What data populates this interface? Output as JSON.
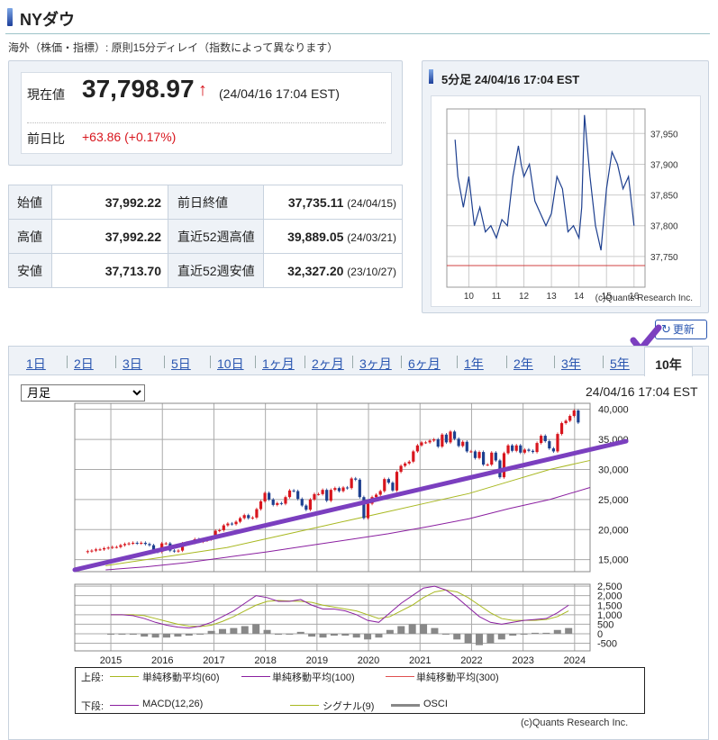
{
  "header": {
    "title": "NYダウ"
  },
  "notice": "海外（株価・指標）: 原則15分ディレイ（指数によって異なります）",
  "quote": {
    "current_label": "現在値",
    "price": "37,798.97",
    "arrow": "↑",
    "time": "(24/04/16 17:04 EST)",
    "change_label": "前日比",
    "change": "+63.86",
    "change_pct": "(+0.17%)"
  },
  "stats": {
    "open_label": "始値",
    "open": "37,992.22",
    "high_label": "高値",
    "high": "37,992.22",
    "low_label": "安値",
    "low": "37,713.70",
    "prev_close_label": "前日終値",
    "prev_close": "37,735.11",
    "prev_close_date": "(24/04/15)",
    "high52_label": "直近52週高値",
    "high52": "39,889.05",
    "high52_date": "(24/03/21)",
    "low52_label": "直近52週安値",
    "low52": "32,327.20",
    "low52_date": "(23/10/27)"
  },
  "mini": {
    "title": "5分足 24/04/16 17:04 EST",
    "copyright": "(c)Quants Research Inc."
  },
  "refresh_label": "更新",
  "tabs": [
    "1日",
    "2日",
    "3日",
    "5日",
    "10日",
    "1ヶ月",
    "2ヶ月",
    "3ヶ月",
    "6ヶ月",
    "1年",
    "2年",
    "3年",
    "5年",
    "10年"
  ],
  "active_tab": "10年",
  "period_select": {
    "value": "月足",
    "options": [
      "月足"
    ]
  },
  "chart_time": "24/04/16 17:04 EST",
  "legend": {
    "upper_label": "上段:",
    "ma60": "単純移動平均(60)",
    "ma100": "単純移動平均(100)",
    "ma300": "単純移動平均(300)",
    "lower_label": "下段:",
    "macd": "MACD(12,26)",
    "signal": "シグナル(9)",
    "osci": "OSCI"
  },
  "copyright": "(c)Quants Research Inc.",
  "colors": {
    "up": "#d8161e",
    "down": "#1d3f8f",
    "ma60": "#a8b820",
    "ma100": "#8a1fa0",
    "ma300": "#e05050",
    "trend": "#7b3fbf",
    "osci": "#888888"
  },
  "chart_data": [
    {
      "type": "line",
      "title": "5分足 24/04/16 17:04 EST",
      "x": [
        9.5,
        9.6,
        9.8,
        10.0,
        10.2,
        10.4,
        10.6,
        10.8,
        11.0,
        11.2,
        11.4,
        11.6,
        11.8,
        11.9,
        12.0,
        12.2,
        12.4,
        12.6,
        12.8,
        13.0,
        13.2,
        13.4,
        13.6,
        13.8,
        14.0,
        14.1,
        14.2,
        14.4,
        14.6,
        14.8,
        15.0,
        15.2,
        15.4,
        15.6,
        15.8,
        16.0
      ],
      "y": [
        37940,
        37880,
        37830,
        37880,
        37800,
        37830,
        37790,
        37800,
        37780,
        37810,
        37800,
        37880,
        37930,
        37900,
        37880,
        37900,
        37840,
        37820,
        37800,
        37820,
        37880,
        37860,
        37790,
        37800,
        37780,
        37830,
        37980,
        37880,
        37800,
        37760,
        37860,
        37920,
        37900,
        37860,
        37880,
        37800
      ],
      "x_ticks": [
        10,
        11,
        12,
        13,
        14,
        15,
        16
      ],
      "y_ticks": [
        37750,
        37800,
        37850,
        37900,
        37950
      ],
      "ylim": [
        37700,
        37990
      ],
      "reference_line": 37735.11
    },
    {
      "type": "candlestick",
      "title": "",
      "x_ticks": [
        "2015",
        "2016",
        "2017",
        "2018",
        "2019",
        "2020",
        "2021",
        "2022",
        "2023",
        "2024"
      ],
      "y_ticks": [
        15000,
        20000,
        25000,
        30000,
        35000,
        40000
      ],
      "ylim": [
        13000,
        41000
      ],
      "x_start": 2014.3,
      "x_end": 2024.3,
      "monthly_close": [
        16400,
        16500,
        16700,
        16700,
        16900,
        17000,
        17100,
        17100,
        17400,
        17600,
        17700,
        17800,
        17700,
        17800,
        17600,
        17400,
        16500,
        16300,
        17700,
        17700,
        16500,
        16400,
        16500,
        17700,
        17800,
        17800,
        18400,
        18000,
        18200,
        18400,
        18700,
        19800,
        19900,
        20700,
        21000,
        20900,
        21300,
        21900,
        22400,
        21900,
        22000,
        23400,
        24700,
        26100,
        25000,
        24100,
        24400,
        24300,
        25400,
        26500,
        26400,
        25100,
        24000,
        23300,
        25000,
        25900,
        25900,
        26600,
        24800,
        26600,
        26900,
        26400,
        27000,
        26900,
        28500,
        28300,
        25400,
        21900,
        24300,
        25400,
        25800,
        26400,
        28400,
        27800,
        26500,
        29600,
        30600,
        31000,
        31300,
        33000,
        34000,
        34500,
        34500,
        34800,
        35000,
        33800,
        35800,
        34500,
        36300,
        35100,
        33900,
        34600,
        33000,
        33000,
        31900,
        32900,
        30800,
        30800,
        32800,
        31500,
        28700,
        32700,
        34000,
        33100,
        34000,
        32800,
        33300,
        33100,
        32900,
        34400,
        35600,
        34700,
        33500,
        33000,
        35900,
        37700,
        38100,
        38900,
        39800,
        37800
      ],
      "ma60_approx": [
        14000,
        15000,
        16000,
        17000,
        18500,
        20000,
        21500,
        23000,
        24500,
        26000,
        28000,
        30000,
        31500
      ],
      "ma100_approx": [
        13300,
        13800,
        14500,
        15400,
        16300,
        17300,
        18300,
        19300,
        20500,
        21800,
        23500,
        25000,
        27000
      ],
      "trendline": {
        "from": [
          2014.3,
          13300
        ],
        "to": [
          2025.0,
          34700
        ]
      }
    },
    {
      "type": "line",
      "title": "",
      "y_ticks": [
        -500,
        0,
        500,
        1000,
        1500,
        2000,
        2500
      ],
      "ylim": [
        -900,
        2600
      ],
      "series": [
        {
          "name": "MACD(12,26)",
          "values": [
            1000,
            1000,
            950,
            800,
            600,
            450,
            350,
            300,
            400,
            600,
            900,
            1200,
            1600,
            2000,
            1900,
            1700,
            1700,
            1800,
            1500,
            1300,
            1300,
            1200,
            1000,
            700,
            600,
            1100,
            1600,
            2000,
            2400,
            2500,
            2300,
            1900,
            1400,
            900,
            600,
            500,
            600,
            700,
            750,
            800,
            1100,
            1500
          ]
        },
        {
          "name": "シグナル(9)",
          "values": [
            1000,
            1000,
            1000,
            950,
            800,
            650,
            500,
            400,
            380,
            450,
            650,
            900,
            1200,
            1500,
            1700,
            1750,
            1720,
            1700,
            1650,
            1500,
            1400,
            1300,
            1200,
            1000,
            800,
            900,
            1200,
            1500,
            1900,
            2200,
            2300,
            2200,
            1900,
            1500,
            1100,
            800,
            700,
            700,
            700,
            750,
            900,
            1200
          ]
        },
        {
          "name": "OSCI",
          "values": [
            0,
            0,
            -50,
            -150,
            -200,
            -200,
            -150,
            -100,
            0,
            150,
            250,
            300,
            400,
            500,
            200,
            -50,
            -20,
            100,
            -150,
            -200,
            -100,
            -100,
            -200,
            -300,
            -200,
            200,
            400,
            500,
            500,
            300,
            0,
            -300,
            -500,
            -600,
            -500,
            -300,
            -100,
            0,
            50,
            50,
            200,
            300
          ]
        }
      ]
    }
  ]
}
